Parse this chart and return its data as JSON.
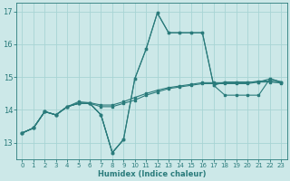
{
  "x": [
    0,
    1,
    2,
    3,
    4,
    5,
    6,
    7,
    8,
    9,
    10,
    11,
    12,
    13,
    14,
    15,
    16,
    17,
    18,
    19,
    20,
    21,
    22,
    23
  ],
  "line_spike": [
    13.3,
    13.45,
    13.95,
    13.85,
    14.1,
    14.2,
    14.2,
    13.85,
    12.7,
    13.1,
    14.95,
    15.85,
    16.95,
    16.35,
    16.35,
    16.35,
    16.35,
    14.75,
    14.85,
    14.85,
    14.85,
    14.85,
    14.95,
    14.85
  ],
  "line_upper": [
    13.3,
    13.45,
    13.95,
    13.85,
    14.1,
    14.2,
    14.2,
    13.85,
    12.7,
    13.1,
    14.95,
    15.85,
    16.95,
    16.35,
    16.35,
    16.35,
    16.35,
    14.75,
    14.45,
    14.45,
    14.45,
    14.45,
    14.95,
    14.85
  ],
  "line_flat1": [
    13.3,
    13.45,
    13.95,
    13.85,
    14.1,
    14.2,
    14.2,
    14.1,
    14.1,
    14.2,
    14.3,
    14.45,
    14.55,
    14.65,
    14.7,
    14.75,
    14.8,
    14.8,
    14.8,
    14.8,
    14.8,
    14.85,
    14.85,
    14.82
  ],
  "line_flat2": [
    13.3,
    13.45,
    13.95,
    13.85,
    14.1,
    14.25,
    14.22,
    14.15,
    14.15,
    14.25,
    14.38,
    14.5,
    14.6,
    14.68,
    14.73,
    14.78,
    14.83,
    14.83,
    14.83,
    14.83,
    14.83,
    14.88,
    14.88,
    14.85
  ],
  "line_dip": [
    13.3,
    13.45,
    13.95,
    13.85,
    14.1,
    14.2,
    14.2,
    13.85,
    12.7,
    13.1,
    null,
    null,
    null,
    null,
    null,
    null,
    null,
    null,
    null,
    null,
    null,
    null,
    null,
    null
  ],
  "color": "#2a7b7b",
  "bg_color": "#cce8e8",
  "grid_color": "#a8d4d4",
  "xlabel": "Humidex (Indice chaleur)",
  "ylim": [
    12.5,
    17.25
  ],
  "xlim": [
    -0.5,
    23.5
  ],
  "yticks": [
    13,
    14,
    15,
    16,
    17
  ],
  "xticks": [
    0,
    1,
    2,
    3,
    4,
    5,
    6,
    7,
    8,
    9,
    10,
    11,
    12,
    13,
    14,
    15,
    16,
    17,
    18,
    19,
    20,
    21,
    22,
    23
  ]
}
